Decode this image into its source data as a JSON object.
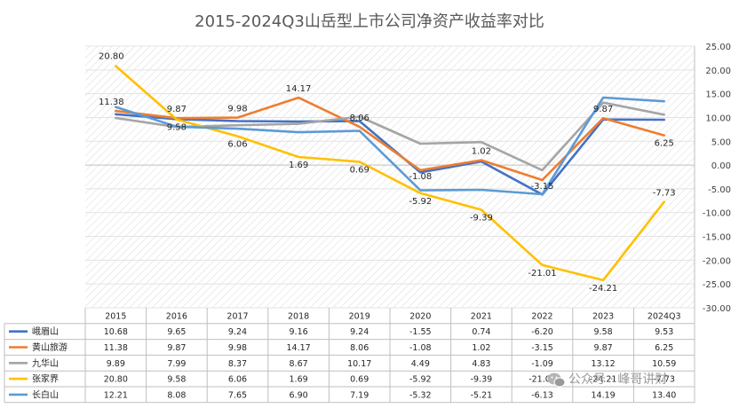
{
  "chart_data": {
    "type": "line",
    "title": "2015-2024Q3山岳型上市公司净资产收益率对比",
    "categories": [
      "2015",
      "2016",
      "2017",
      "2018",
      "2019",
      "2020",
      "2021",
      "2022",
      "2023",
      "2024Q3"
    ],
    "ylim": [
      -30,
      25
    ],
    "ytick_step": 5,
    "yticks": [
      "25.00",
      "20.00",
      "15.00",
      "10.00",
      "5.00",
      "0.00",
      "-5.00",
      "-10.00",
      "-15.00",
      "-20.00",
      "-25.00",
      "-30.00"
    ],
    "grid": true,
    "legend": "data-table-below",
    "series": [
      {
        "name": "峨眉山",
        "color": "#4472c4",
        "values": [
          10.68,
          9.65,
          9.24,
          9.16,
          9.24,
          -1.55,
          0.74,
          -6.2,
          9.58,
          9.53
        ],
        "cells": [
          "10.68",
          "9.65",
          "9.24",
          "9.16",
          "9.24",
          "-1.55",
          "0.74",
          "-6.20",
          "9.58",
          "9.53"
        ],
        "labels": []
      },
      {
        "name": "黄山旅游",
        "color": "#ed7d31",
        "values": [
          11.38,
          9.87,
          9.98,
          14.17,
          8.06,
          -1.08,
          1.02,
          -3.15,
          9.87,
          6.25
        ],
        "cells": [
          "11.38",
          "9.87",
          "9.98",
          "14.17",
          "8.06",
          "-1.08",
          "1.02",
          "-3.15",
          "9.87",
          "6.25"
        ],
        "labels": [
          "11.38",
          "9.87",
          "9.98",
          "14.17",
          "8.06",
          "-1.08",
          "1.02",
          "-3.15",
          "9.87",
          "6.25"
        ]
      },
      {
        "name": "九华山",
        "color": "#a5a5a5",
        "values": [
          9.89,
          7.99,
          8.37,
          8.67,
          10.17,
          4.49,
          4.83,
          -1.09,
          13.12,
          10.59
        ],
        "cells": [
          "9.89",
          "7.99",
          "8.37",
          "8.67",
          "10.17",
          "4.49",
          "4.83",
          "-1.09",
          "13.12",
          "10.59"
        ],
        "labels": []
      },
      {
        "name": "张家界",
        "color": "#ffc000",
        "values": [
          20.8,
          9.58,
          6.06,
          1.69,
          0.69,
          -5.92,
          -9.39,
          -21.01,
          -24.21,
          -7.73
        ],
        "cells": [
          "20.80",
          "9.58",
          "6.06",
          "1.69",
          "0.69",
          "-5.92",
          "-9.39",
          "-21.01",
          "-24.21",
          "-7.73"
        ],
        "labels": [
          "20.80",
          "9.58",
          "6.06",
          "1.69",
          "0.69",
          "-5.92",
          "-9.39",
          "-21.01",
          "-24.21",
          "-7.73"
        ]
      },
      {
        "name": "长白山",
        "color": "#5b9bd5",
        "values": [
          12.21,
          8.08,
          7.65,
          6.9,
          7.19,
          -5.32,
          -5.21,
          -6.13,
          14.19,
          13.4
        ],
        "cells": [
          "12.21",
          "8.08",
          "7.65",
          "6.90",
          "7.19",
          "-5.32",
          "-5.21",
          "-6.13",
          "14.19",
          "13.40"
        ],
        "labels": []
      }
    ]
  },
  "watermark": {
    "text": "公众号 · 峰哥讲财",
    "icon": "wechat-icon"
  }
}
